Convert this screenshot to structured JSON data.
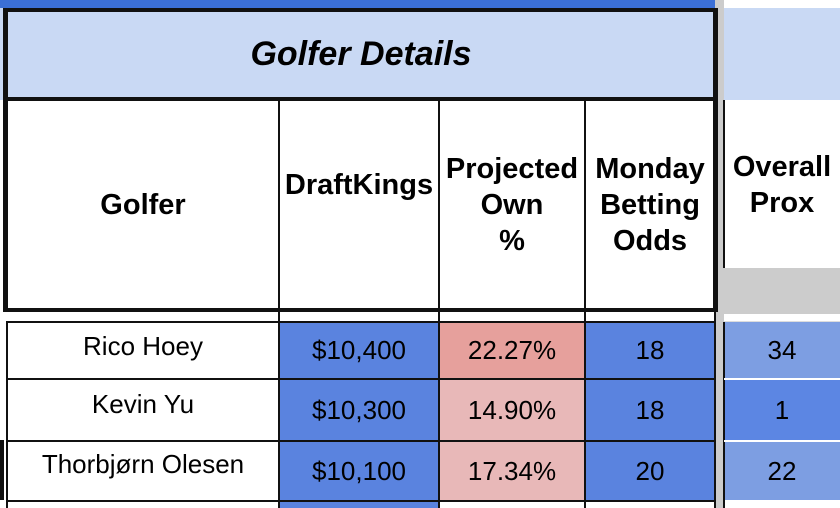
{
  "sheet": {
    "section_title": "Golfer Details",
    "columns": [
      {
        "key": "golfer",
        "label": "Golfer"
      },
      {
        "key": "draftkings",
        "label": "DraftKings"
      },
      {
        "key": "projected_own",
        "label": "Projected\nOwn\n%"
      },
      {
        "key": "monday_odds",
        "label": "Monday\nBetting\nOdds"
      },
      {
        "key": "overall_prox",
        "label": "Overall\nProx"
      }
    ],
    "rows": [
      {
        "golfer": "Rico Hoey",
        "draftkings": "$10,400",
        "projected_own": "22.27%",
        "monday_odds": "18",
        "overall_prox": "34"
      },
      {
        "golfer": "Kevin Yu",
        "draftkings": "$10,300",
        "projected_own": "14.90%",
        "monday_odds": "18",
        "overall_prox": "1"
      },
      {
        "golfer": "Thorbjørn Olesen",
        "draftkings": "$10,100",
        "projected_own": "17.34%",
        "monday_odds": "20",
        "overall_prox": "22"
      }
    ],
    "colors": {
      "header_band": "#c9d9f4",
      "salary_blue": "#5a83df",
      "odds_blue": "#5a83df",
      "own_high": "#e6a09c",
      "own_low": "#e8b8b8",
      "prox_34": "#7d9ee2",
      "prox_1": "#5c86e3",
      "prox_22": "#7d9ee2",
      "gap_gray": "#cccccc"
    }
  }
}
